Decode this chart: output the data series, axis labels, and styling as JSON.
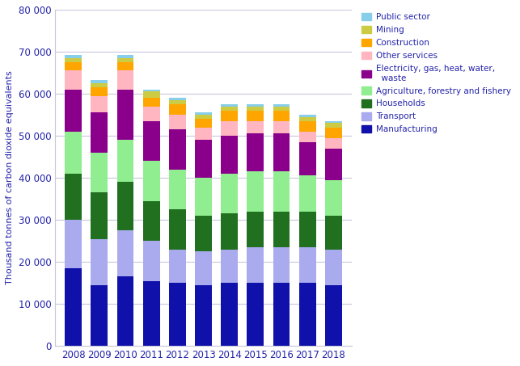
{
  "years": [
    2008,
    2009,
    2010,
    2011,
    2012,
    2013,
    2014,
    2015,
    2016,
    2017,
    2018
  ],
  "categories": [
    "Manufacturing",
    "Transport",
    "Households",
    "Agriculture, forestry and fishery",
    "Electricity, gas, heat, water,\n  waste",
    "Other services",
    "Construction",
    "Mining",
    "Public sector"
  ],
  "legend_labels": [
    "Manufacturing",
    "Transport",
    "Households",
    "Agriculture, forestry and fishery",
    "Electricity, gas, heat, water,\n  waste",
    "Other services",
    "Construction",
    "Mining",
    "Public sector"
  ],
  "colors": [
    "#1010AA",
    "#AAAAEE",
    "#207020",
    "#90EE90",
    "#8B008B",
    "#FFB6C1",
    "#FFA500",
    "#CCCC44",
    "#87CEEB"
  ],
  "data": {
    "Manufacturing": [
      18500,
      14500,
      16500,
      15500,
      15000,
      14500,
      15000,
      15000,
      15000,
      15000,
      14500
    ],
    "Transport": [
      11500,
      11000,
      11000,
      9500,
      8000,
      8000,
      8000,
      8500,
      8500,
      8500,
      8500
    ],
    "Households": [
      11000,
      11000,
      11500,
      9500,
      9500,
      8500,
      8500,
      8500,
      8500,
      8500,
      8000
    ],
    "Agriculture, forestry and fishery": [
      10000,
      9500,
      10000,
      9500,
      9500,
      9000,
      9500,
      9500,
      9500,
      8500,
      8500
    ],
    "Electricity, gas, heat, water,\n  waste": [
      10000,
      9500,
      12000,
      9500,
      9500,
      9000,
      9000,
      9000,
      9000,
      8000,
      7500
    ],
    "Other services": [
      4500,
      4000,
      4500,
      3500,
      3500,
      3000,
      3500,
      3000,
      3000,
      2500,
      2500
    ],
    "Construction": [
      2000,
      2000,
      2000,
      2000,
      2500,
      2000,
      2500,
      2500,
      2500,
      2500,
      2500
    ],
    "Mining": [
      1000,
      1000,
      1000,
      1500,
      1000,
      1000,
      1000,
      1000,
      1000,
      1000,
      1000
    ],
    "Public sector": [
      800,
      700,
      800,
      500,
      500,
      500,
      500,
      500,
      500,
      500,
      500
    ]
  },
  "ylabel": "Thousand tonnes of carbon dioxide equivalents",
  "ylim": [
    0,
    80000
  ],
  "yticks": [
    0,
    10000,
    20000,
    30000,
    40000,
    50000,
    60000,
    70000,
    80000
  ],
  "ytick_labels": [
    "0",
    "10 000",
    "20 000",
    "30 000",
    "40 000",
    "50 000",
    "60 000",
    "70 000",
    "80 000"
  ],
  "grid_color": "#C8C8DC",
  "text_color": "#2222AA",
  "bar_width": 0.65
}
